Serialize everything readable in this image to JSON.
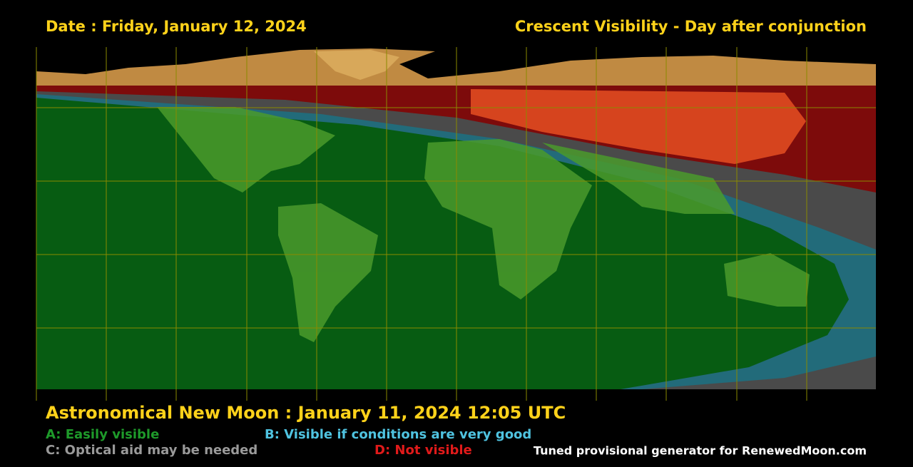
{
  "header": {
    "date": "Date : Friday, January 12, 2024",
    "title": "Crescent Visibility - Day after conjunction"
  },
  "footer": {
    "new_moon": "Astronomical New Moon : January 11, 2024 12:05 UTC",
    "legend": [
      "A: Easily visible",
      "B: Visible if conditions are very good",
      "C: Optical aid may be needed",
      "D: Not visible"
    ],
    "credit": "Tuned provisional generator for RenewedMoon.com"
  }
}
